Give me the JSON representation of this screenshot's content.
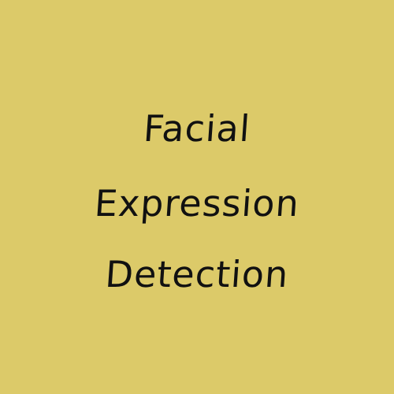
{
  "title_lines": [
    "Facial",
    "Expression",
    "Detection"
  ],
  "colors": {
    "background": "#dcca69",
    "text": "#111111"
  }
}
